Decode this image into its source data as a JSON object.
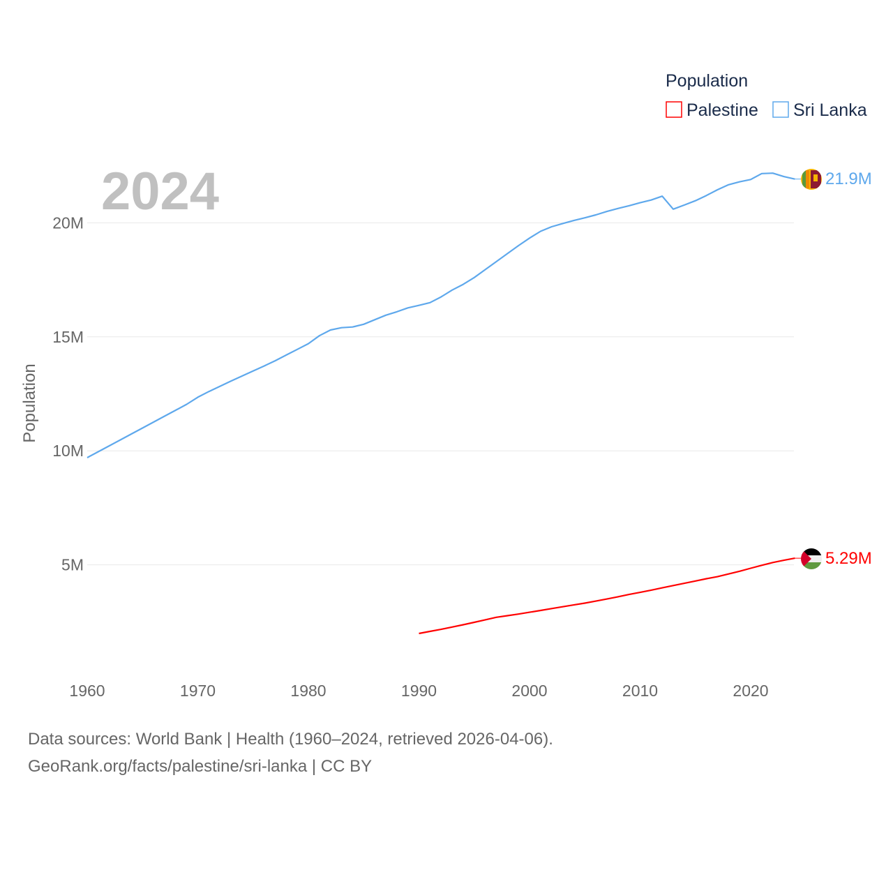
{
  "chart_data": {
    "type": "line",
    "title": "Population",
    "ylabel": "Population",
    "xlabel": "",
    "year_label": "2024",
    "xlim": [
      1960,
      2024
    ],
    "ylim": [
      0,
      23
    ],
    "x_ticks": [
      1960,
      1970,
      1980,
      1990,
      2000,
      2010,
      2020
    ],
    "y_ticks": [
      {
        "v": 5,
        "label": "5M"
      },
      {
        "v": 10,
        "label": "10M"
      },
      {
        "v": 15,
        "label": "15M"
      },
      {
        "v": 20,
        "label": "20M"
      }
    ],
    "grid": true,
    "legend": {
      "title": "Population",
      "position": "top-right"
    },
    "series": [
      {
        "name": "Palestine",
        "color": "#ff0000",
        "end_label": "5.29M",
        "flag": "palestine-flag",
        "start_year": 1990,
        "values": [
          1.99,
          2.08,
          2.17,
          2.27,
          2.37,
          2.48,
          2.59,
          2.7,
          2.77,
          2.84,
          2.92,
          3.0,
          3.08,
          3.16,
          3.24,
          3.32,
          3.41,
          3.5,
          3.6,
          3.7,
          3.79,
          3.89,
          3.99,
          4.09,
          4.19,
          4.29,
          4.39,
          4.48,
          4.6,
          4.72,
          4.85,
          4.98,
          5.1,
          5.2,
          5.29
        ]
      },
      {
        "name": "Sri Lanka",
        "color": "#5ea8ec",
        "end_label": "21.9M",
        "flag": "sri-lanka-flag",
        "start_year": 1960,
        "values": [
          9.7,
          9.96,
          10.22,
          10.48,
          10.74,
          11.0,
          11.26,
          11.52,
          11.78,
          12.04,
          12.35,
          12.6,
          12.83,
          13.06,
          13.28,
          13.5,
          13.72,
          13.95,
          14.2,
          14.45,
          14.7,
          15.05,
          15.3,
          15.4,
          15.43,
          15.55,
          15.75,
          15.95,
          16.1,
          16.27,
          16.38,
          16.5,
          16.75,
          17.05,
          17.3,
          17.6,
          17.95,
          18.3,
          18.65,
          19.0,
          19.33,
          19.63,
          19.83,
          19.97,
          20.1,
          20.22,
          20.35,
          20.5,
          20.63,
          20.75,
          20.88,
          21.0,
          21.17,
          20.6,
          20.78,
          20.97,
          21.2,
          21.45,
          21.67,
          21.8,
          21.9,
          22.16,
          22.18,
          22.03,
          21.92
        ]
      }
    ]
  },
  "footer": {
    "line1": "Data sources: World Bank | Health (1960–2024, retrieved 2026-04-06).",
    "line2": "GeoRank.org/facts/palestine/sri-lanka | CC BY"
  }
}
